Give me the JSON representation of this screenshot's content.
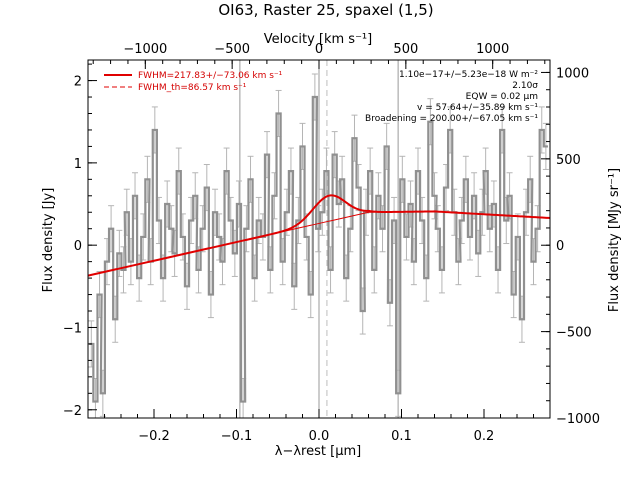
{
  "chart_data": {
    "type": "line",
    "title": "OI63, Raster 25, spaxel (1,5)",
    "xlabel": "λ−λrest [μm]",
    "ylabel": "Flux density [Jy]",
    "x2label": "Velocity [km s⁻¹]",
    "y2label": "Flux density [MJy sr⁻¹]",
    "xlim": [
      -0.28,
      0.28
    ],
    "ylim": [
      -2.1,
      2.25
    ],
    "x2lim": [
      -1330,
      1330
    ],
    "y2lim": [
      -1000,
      1072
    ],
    "xticks": [
      -0.2,
      -0.1,
      0.0,
      0.1,
      0.2
    ],
    "yticks": [
      -2,
      -1,
      0,
      1,
      2
    ],
    "x2ticks": [
      -1000,
      -500,
      0,
      500,
      1000
    ],
    "y2ticks": [
      -1000,
      -500,
      0,
      500,
      1000
    ],
    "xtick_labels": [
      "−0.2",
      "−0.1",
      "0.0",
      "0.1",
      "0.2"
    ],
    "ytick_labels": [
      "−2",
      "−1",
      "0",
      "1",
      "2"
    ],
    "x2tick_labels": [
      "−1000",
      "−500",
      "0",
      "500",
      "1000"
    ],
    "y2tick_labels": [
      "−1000",
      "−500",
      "0",
      "500",
      "1000"
    ],
    "vlines": [
      -0.0959,
      0.0,
      0.0959
    ],
    "dashed_vline": 0.0096,
    "legend": [
      {
        "label": "FWHM=217.83+/−73.06 km s⁻¹",
        "style": "solid",
        "color": "#e00000"
      },
      {
        "label": "FWHM_th=86.57 km s⁻¹",
        "style": "dashed",
        "color": "#e00000"
      }
    ],
    "annotations": [
      "1.10e−17+/−5.23e−18 W m⁻²",
      "2.10σ",
      "EQW = 0.02 μm",
      "v = 57.64+/−35.89 km s⁻¹",
      "Broadening = 200.00+/−67.05 km s⁻¹"
    ],
    "series": [
      {
        "name": "data",
        "color": "#909090",
        "x": [
          -0.276,
          -0.271,
          -0.266,
          -0.262,
          -0.257,
          -0.252,
          -0.247,
          -0.242,
          -0.237,
          -0.233,
          -0.228,
          -0.223,
          -0.218,
          -0.213,
          -0.208,
          -0.204,
          -0.199,
          -0.194,
          -0.189,
          -0.184,
          -0.179,
          -0.175,
          -0.17,
          -0.165,
          -0.16,
          -0.155,
          -0.15,
          -0.146,
          -0.141,
          -0.136,
          -0.131,
          -0.126,
          -0.121,
          -0.117,
          -0.112,
          -0.107,
          -0.102,
          -0.097,
          -0.092,
          -0.088,
          -0.083,
          -0.078,
          -0.073,
          -0.068,
          -0.063,
          -0.059,
          -0.054,
          -0.049,
          -0.044,
          -0.039,
          -0.034,
          -0.03,
          -0.025,
          -0.02,
          -0.015,
          -0.01,
          -0.005,
          -0.001,
          0.004,
          0.009,
          0.014,
          0.019,
          0.024,
          0.028,
          0.033,
          0.038,
          0.043,
          0.048,
          0.053,
          0.057,
          0.062,
          0.067,
          0.072,
          0.077,
          0.082,
          0.086,
          0.091,
          0.096,
          0.101,
          0.106,
          0.111,
          0.115,
          0.12,
          0.125,
          0.13,
          0.135,
          0.14,
          0.144,
          0.149,
          0.154,
          0.159,
          0.164,
          0.169,
          0.173,
          0.178,
          0.183,
          0.188,
          0.193,
          0.198,
          0.202,
          0.207,
          0.212,
          0.217,
          0.222,
          0.227,
          0.231,
          0.236,
          0.241,
          0.246,
          0.251,
          0.256,
          0.26,
          0.265,
          0.27,
          0.275
        ],
        "y": [
          -1.2,
          -1.9,
          -0.6,
          -1.8,
          -0.2,
          0.2,
          -0.9,
          -0.1,
          -0.3,
          0.4,
          -0.2,
          0.6,
          -0.4,
          0.1,
          0.8,
          -0.2,
          1.4,
          0.3,
          -0.4,
          0.5,
          0.2,
          -0.1,
          0.9,
          0.1,
          -0.5,
          0.3,
          0.6,
          -0.3,
          0.2,
          0.7,
          -0.6,
          0.4,
          0.1,
          -0.2,
          0.9,
          0.3,
          -0.1,
          0.5,
          -1.9,
          0.2,
          0.8,
          -0.4,
          0.3,
          0.1,
          1.1,
          -0.3,
          0.6,
          1.6,
          -0.2,
          0.4,
          0.9,
          -0.5,
          0.3,
          1.2,
          0.1,
          -0.6,
          1.8,
          0.2,
          0.4,
          0.9,
          -0.3,
          1.1,
          0.5,
          0.8,
          -0.4,
          0.2,
          1.3,
          0.7,
          -0.8,
          0.4,
          0.9,
          -0.3,
          0.6,
          0.2,
          1.2,
          -0.7,
          0.3,
          -1.8,
          0.8,
          0.1,
          0.5,
          -0.2,
          0.9,
          0.3,
          -0.4,
          1.5,
          0.6,
          0.2,
          -0.3,
          0.7,
          1.4,
          0.4,
          -0.2,
          0.3,
          0.8,
          0.1,
          0.6,
          -0.1,
          0.4,
          0.9,
          0.2,
          0.5,
          -0.3,
          1.4,
          0.3,
          0.6,
          -0.6,
          0.1,
          -0.9,
          0.4,
          0.8,
          -0.2,
          0.2,
          1.4,
          1.2
        ],
        "err": 0.28
      },
      {
        "name": "fit",
        "color": "#e00000",
        "baseline": {
          "x": [
            -0.28,
            0.06,
            0.14,
            0.28
          ],
          "y": [
            -0.37,
            0.4,
            0.41,
            0.33
          ]
        },
        "gaussian": {
          "center": 0.0123,
          "amplitude": 0.31,
          "sigma": 0.0198
        }
      }
    ]
  }
}
